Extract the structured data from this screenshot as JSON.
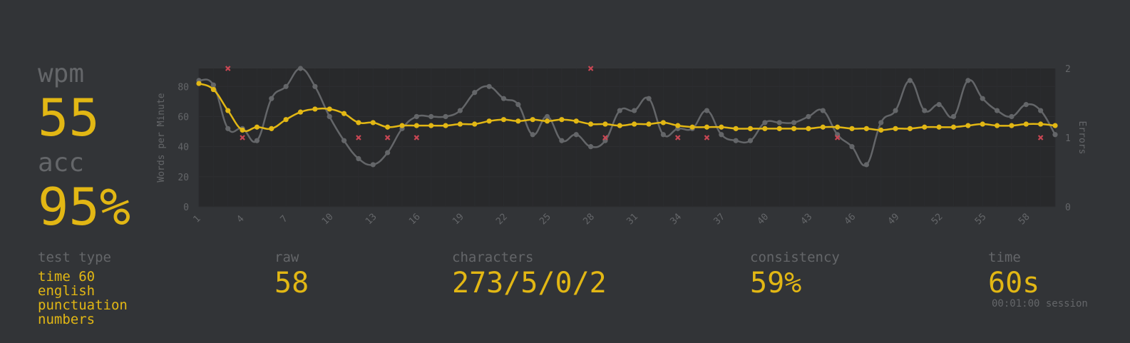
{
  "stats": {
    "wpm_label": "wpm",
    "wpm": "55",
    "acc_label": "acc",
    "acc": "95%"
  },
  "test_type": {
    "label": "test type",
    "lines": [
      "time 60",
      "english",
      "punctuation",
      "numbers"
    ]
  },
  "raw": {
    "label": "raw",
    "value": "58"
  },
  "characters": {
    "label": "characters",
    "value": "273/5/0/2"
  },
  "consistency": {
    "label": "consistency",
    "value": "59%"
  },
  "time": {
    "label": "time",
    "value": "60s",
    "session": "00:01:00 session"
  },
  "colors": {
    "background": "#323437",
    "accent": "#e2b714",
    "raw_line": "#646669",
    "error": "#ca4754",
    "sub_text": "#646669"
  },
  "chart_data": {
    "type": "line",
    "ylabel": "Words per Minute",
    "y2label": "Errors",
    "ylim": [
      0,
      92
    ],
    "y_ticks": [
      0,
      20,
      40,
      60,
      80
    ],
    "y2lim": [
      0,
      2
    ],
    "y2_ticks": [
      0,
      1,
      2
    ],
    "x_range": [
      1,
      60
    ],
    "x_ticks": [
      1,
      4,
      7,
      10,
      13,
      16,
      19,
      22,
      25,
      28,
      31,
      34,
      37,
      40,
      43,
      46,
      49,
      52,
      55,
      58
    ],
    "grid": true,
    "series": [
      {
        "key": "raw",
        "values": [
          84,
          81,
          52,
          52,
          44,
          72,
          80,
          92,
          80,
          60,
          44,
          32,
          28,
          36,
          52,
          60,
          60,
          60,
          64,
          76,
          80,
          72,
          68,
          48,
          60,
          44,
          48,
          40,
          44,
          64,
          64,
          72,
          48,
          52,
          52,
          64,
          48,
          44,
          44,
          56,
          56,
          56,
          60,
          64,
          48,
          40,
          28,
          56,
          64,
          84,
          64,
          68,
          60,
          84,
          72,
          64,
          60,
          68,
          64,
          48
        ]
      },
      {
        "key": "wpm",
        "values": [
          82,
          78,
          64,
          51,
          53,
          52,
          58,
          63,
          65,
          65,
          62,
          56,
          56,
          53,
          54,
          54,
          54,
          54,
          55,
          55,
          57,
          58,
          57,
          58,
          57,
          58,
          57,
          55,
          55,
          54,
          55,
          55,
          56,
          54,
          53,
          53,
          53,
          52,
          52,
          52,
          52,
          52,
          52,
          53,
          53,
          52,
          52,
          51,
          52,
          52,
          53,
          53,
          53,
          54,
          55,
          54,
          54,
          55,
          55,
          54
        ]
      },
      {
        "key": "errors",
        "points": [
          [
            3,
            2
          ],
          [
            4,
            1
          ],
          [
            12,
            1
          ],
          [
            14,
            1
          ],
          [
            16,
            1
          ],
          [
            28,
            2
          ],
          [
            29,
            1
          ],
          [
            34,
            1
          ],
          [
            36,
            1
          ],
          [
            45,
            1
          ],
          [
            59,
            1
          ]
        ]
      }
    ]
  }
}
